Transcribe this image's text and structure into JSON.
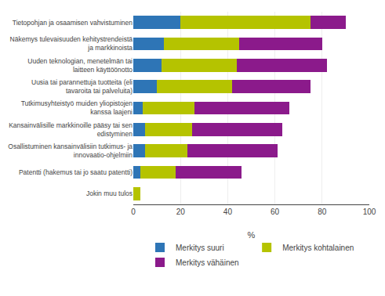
{
  "chart_data": {
    "type": "bar",
    "orientation": "horizontal",
    "stacked": true,
    "categories": [
      "Tietopohjan ja osaamisen vahvistuminen",
      "Näkemys tulevaisuuden kehitystrendeistä\nja markkinoista",
      "Uuden teknologian, menetelmän tai\nlaitteen käyttöönotto",
      "Uusia tai parannettuja tuotteita (eli\ntavaroita tai palveluita)",
      "Tutkimusyhteistyö muiden yliopistojen\nkanssa laajeni",
      "Kansainvälisille markkinoille pääsy tai sen\nedistyminen",
      "Osallistuminen kansainvälisiin tutkimus- ja\ninnovaatio-ohjelmiin",
      "Patentti (hakemus tai jo saatu patentti)",
      "Jokin muu tulos"
    ],
    "series": [
      {
        "name": "Merkitys suuri",
        "color": "#2e75b6",
        "values": [
          20,
          13,
          12,
          10,
          4,
          5,
          5,
          3,
          0
        ]
      },
      {
        "name": "Merkitys kohtalainen",
        "color": "#b5c300",
        "values": [
          55,
          32,
          32,
          32,
          22,
          20,
          18,
          15,
          3
        ]
      },
      {
        "name": "Merkitys vähäinen",
        "color": "#8b1a8b",
        "values": [
          15,
          35,
          38,
          33,
          40,
          38,
          38,
          28,
          0
        ]
      }
    ],
    "xlabel": "%",
    "xlim": [
      0,
      100
    ],
    "xticks": [
      0,
      20,
      40,
      60,
      80,
      100
    ],
    "grid": true,
    "legend": "bottom"
  }
}
